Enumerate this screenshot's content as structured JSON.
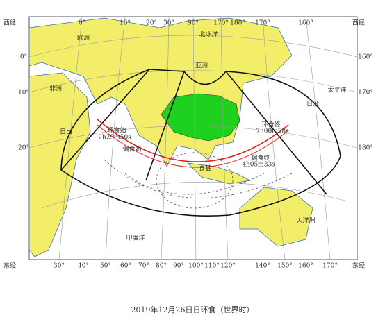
{
  "map": {
    "title": "2019年12月26日日环食（世界时）",
    "top_labels": [
      "西经",
      "0°",
      "10°",
      "20°",
      "30°",
      "90°",
      "170°",
      "180°",
      "170°",
      "160°",
      "西经"
    ],
    "bottom_labels": [
      "东经",
      "30°",
      "40°",
      "50°",
      "60°",
      "70°",
      "80°",
      "90°",
      "100°",
      "110°",
      "120°",
      "140°",
      "150°",
      "160°",
      "170°",
      "东经"
    ],
    "left_labels": [
      "0°",
      "10°",
      "20°"
    ],
    "right_labels": [
      "160°",
      "170°",
      "180°"
    ],
    "labels": [
      "欧洲",
      "亚洲",
      "非洲",
      "北冰洋",
      "太平洋",
      "印度洋",
      "大洋洲",
      "环食始",
      "2h29m50s",
      "偏食始",
      "环食终",
      "7h00m58s",
      "偏食终",
      "食甚",
      "4h05m33s",
      "日出",
      "日没"
    ]
  }
}
